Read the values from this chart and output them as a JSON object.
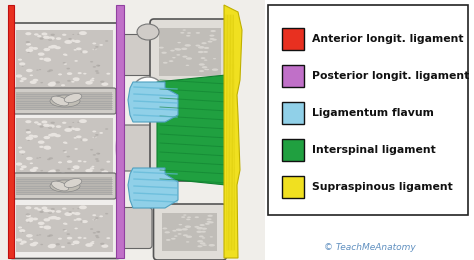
{
  "legend_items": [
    {
      "label": "Anterior longit. ligament",
      "color": "#e83020"
    },
    {
      "label": "Posterior longit. ligament",
      "color": "#c070c8"
    },
    {
      "label": "Ligamentum flavum",
      "color": "#90d0e8"
    },
    {
      "label": "Interspinal ligament",
      "color": "#20a040"
    },
    {
      "label": "Supraspinous ligament",
      "color": "#f0e020"
    }
  ],
  "bg_color": "#ffffff",
  "watermark": "TeachMeAnatomy",
  "watermark_color": "#6090c0"
}
